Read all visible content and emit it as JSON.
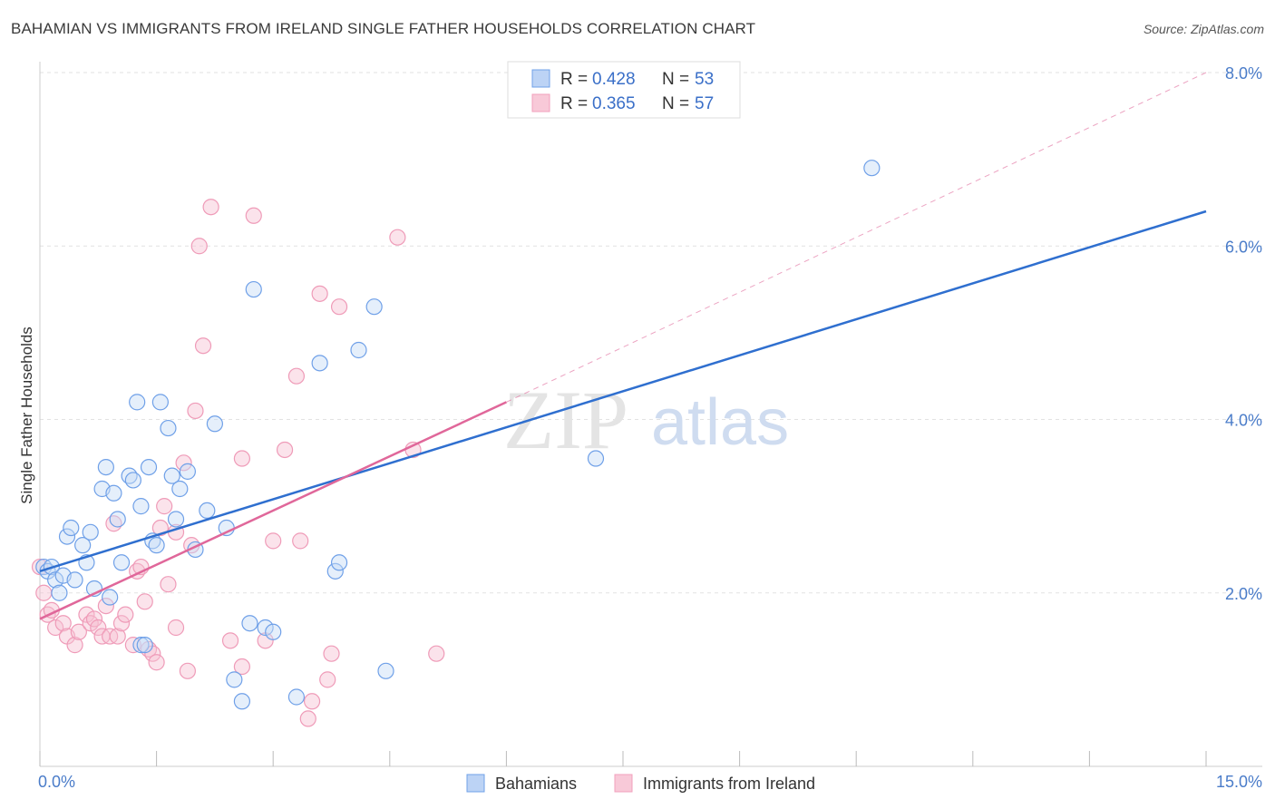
{
  "header": {
    "title": "BAHAMIAN VS IMMIGRANTS FROM IRELAND SINGLE FATHER HOUSEHOLDS CORRELATION CHART",
    "source": "Source: ZipAtlas.com"
  },
  "watermark": {
    "zip": "ZIP",
    "atlas": "atlas"
  },
  "stats_legend": [
    {
      "r_label": "R = ",
      "r_value": "0.428",
      "n_label": "N = ",
      "n_value": "53"
    },
    {
      "r_label": "R = ",
      "r_value": "0.365",
      "n_label": "N = ",
      "n_value": "57"
    }
  ],
  "chart_data": {
    "type": "scatter",
    "title": "BAHAMIAN VS IMMIGRANTS FROM IRELAND SINGLE FATHER HOUSEHOLDS CORRELATION CHART",
    "xlabel": "",
    "ylabel": "Single Father Households",
    "xlim": [
      0,
      15
    ],
    "ylim": [
      0,
      8
    ],
    "x_tick_labels": [
      "0.0%",
      "15.0%"
    ],
    "y_ticks": [
      2,
      4,
      6,
      8
    ],
    "y_tick_labels": [
      "2.0%",
      "4.0%",
      "6.0%",
      "8.0%"
    ],
    "grid": true,
    "legend_position": "top-center",
    "colors": {
      "bahamians": "#6fa0e8",
      "ireland": "#f2a0bc",
      "bahamians_line": "#2f6fcf",
      "ireland_line": "#e0679a"
    },
    "series": [
      {
        "name": "Bahamians",
        "points": [
          [
            0.05,
            2.3
          ],
          [
            0.1,
            2.25
          ],
          [
            0.15,
            2.3
          ],
          [
            0.2,
            2.15
          ],
          [
            0.25,
            2.0
          ],
          [
            0.3,
            2.2
          ],
          [
            0.35,
            2.65
          ],
          [
            0.4,
            2.75
          ],
          [
            0.45,
            2.15
          ],
          [
            0.55,
            2.55
          ],
          [
            0.6,
            2.35
          ],
          [
            0.65,
            2.7
          ],
          [
            0.7,
            2.05
          ],
          [
            0.8,
            3.2
          ],
          [
            0.85,
            3.45
          ],
          [
            0.95,
            3.15
          ],
          [
            1.0,
            2.85
          ],
          [
            1.05,
            2.35
          ],
          [
            1.15,
            3.35
          ],
          [
            1.2,
            3.3
          ],
          [
            1.25,
            4.2
          ],
          [
            1.3,
            3.0
          ],
          [
            1.4,
            3.45
          ],
          [
            1.45,
            2.6
          ],
          [
            1.5,
            2.55
          ],
          [
            1.55,
            4.2
          ],
          [
            1.65,
            3.9
          ],
          [
            1.7,
            3.35
          ],
          [
            1.75,
            2.85
          ],
          [
            1.8,
            3.2
          ],
          [
            1.9,
            3.4
          ],
          [
            2.0,
            2.5
          ],
          [
            2.15,
            2.95
          ],
          [
            2.25,
            3.95
          ],
          [
            2.4,
            2.75
          ],
          [
            2.5,
            1.0
          ],
          [
            2.6,
            0.75
          ],
          [
            2.7,
            1.65
          ],
          [
            2.75,
            5.5
          ],
          [
            2.9,
            1.6
          ],
          [
            3.0,
            1.55
          ],
          [
            3.3,
            0.8
          ],
          [
            3.6,
            4.65
          ],
          [
            3.8,
            2.25
          ],
          [
            3.85,
            2.35
          ],
          [
            4.1,
            4.8
          ],
          [
            4.3,
            5.3
          ],
          [
            4.45,
            1.1
          ],
          [
            7.15,
            3.55
          ],
          [
            10.7,
            6.9
          ],
          [
            1.3,
            1.4
          ],
          [
            1.35,
            1.4
          ],
          [
            0.9,
            1.95
          ]
        ]
      },
      {
        "name": "Immigrants from Ireland",
        "points": [
          [
            0.05,
            2.0
          ],
          [
            0.1,
            1.75
          ],
          [
            0.15,
            1.8
          ],
          [
            0.2,
            1.6
          ],
          [
            0.3,
            1.65
          ],
          [
            0.35,
            1.5
          ],
          [
            0.45,
            1.4
          ],
          [
            0.5,
            1.55
          ],
          [
            0.6,
            1.75
          ],
          [
            0.65,
            1.65
          ],
          [
            0.7,
            1.7
          ],
          [
            0.75,
            1.6
          ],
          [
            0.8,
            1.5
          ],
          [
            0.85,
            1.85
          ],
          [
            0.9,
            1.5
          ],
          [
            0.95,
            2.8
          ],
          [
            1.0,
            1.5
          ],
          [
            1.05,
            1.65
          ],
          [
            1.1,
            1.75
          ],
          [
            1.2,
            1.4
          ],
          [
            1.25,
            2.25
          ],
          [
            1.3,
            2.3
          ],
          [
            1.35,
            1.9
          ],
          [
            1.4,
            1.35
          ],
          [
            1.45,
            1.3
          ],
          [
            1.5,
            1.2
          ],
          [
            1.55,
            2.75
          ],
          [
            1.6,
            3.0
          ],
          [
            1.65,
            2.1
          ],
          [
            1.75,
            2.7
          ],
          [
            1.75,
            1.6
          ],
          [
            1.85,
            3.5
          ],
          [
            1.9,
            1.1
          ],
          [
            1.95,
            2.55
          ],
          [
            2.0,
            4.1
          ],
          [
            2.05,
            6.0
          ],
          [
            2.1,
            4.85
          ],
          [
            2.2,
            6.45
          ],
          [
            2.45,
            1.45
          ],
          [
            2.6,
            3.55
          ],
          [
            2.6,
            1.15
          ],
          [
            2.75,
            6.35
          ],
          [
            2.9,
            1.45
          ],
          [
            3.0,
            2.6
          ],
          [
            3.15,
            3.65
          ],
          [
            3.3,
            4.5
          ],
          [
            3.35,
            2.6
          ],
          [
            3.5,
            0.75
          ],
          [
            3.6,
            5.45
          ],
          [
            3.7,
            1.0
          ],
          [
            3.75,
            1.3
          ],
          [
            3.85,
            5.3
          ],
          [
            4.6,
            6.1
          ],
          [
            4.8,
            3.65
          ],
          [
            5.1,
            1.3
          ],
          [
            3.45,
            0.55
          ],
          [
            0.0,
            2.3
          ]
        ]
      }
    ],
    "trend_lines": [
      {
        "series": "Bahamians",
        "x": [
          0,
          15
        ],
        "y": [
          2.25,
          6.4
        ],
        "style": "solid"
      },
      {
        "series": "Immigrants from Ireland",
        "x": [
          0,
          6
        ],
        "y": [
          1.7,
          4.2
        ],
        "style": "solid"
      },
      {
        "series": "Immigrants from Ireland",
        "x": [
          6,
          15
        ],
        "y": [
          4.2,
          8.0
        ],
        "style": "dashed"
      }
    ]
  }
}
